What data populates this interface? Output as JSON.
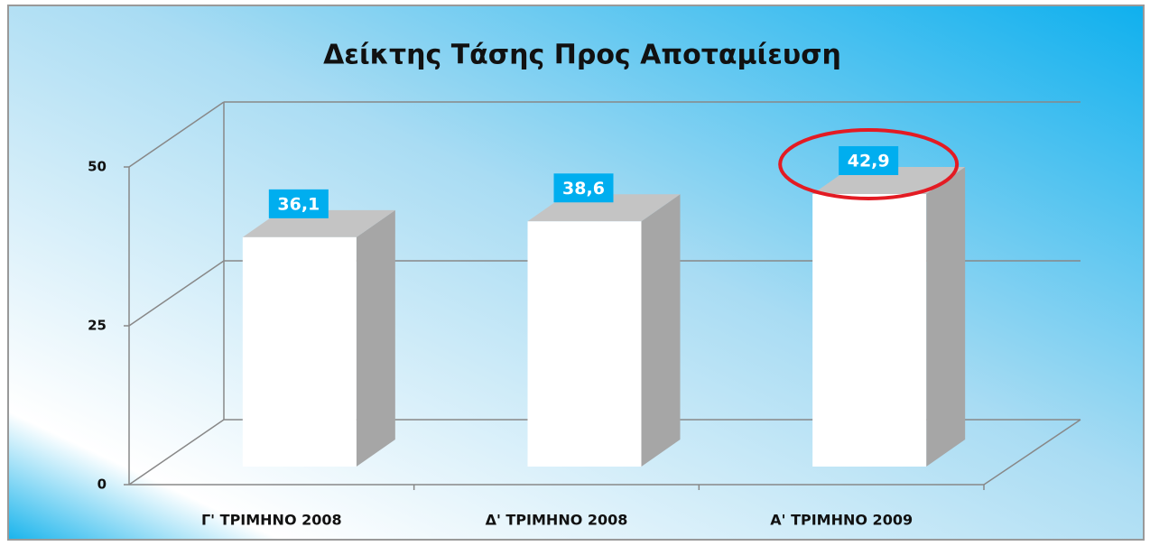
{
  "chart_data": {
    "type": "bar3d",
    "title": "Δείκτης Τάσης Προς Αποταμίευση",
    "categories": [
      "Γ' ΤΡΙΜΗΝΟ 2008",
      "Δ' ΤΡΙΜΗΝΟ 2008",
      "Α' ΤΡΙΜΗΝΟ 2009"
    ],
    "values": [
      36.1,
      38.6,
      42.9
    ],
    "value_labels": [
      "36,1",
      "38,6",
      "42,9"
    ],
    "color": "#ffffff",
    "label_color": "#00aeef",
    "ylim": [
      0,
      50
    ],
    "yticks": [
      0,
      25,
      50
    ],
    "grid": true
  }
}
